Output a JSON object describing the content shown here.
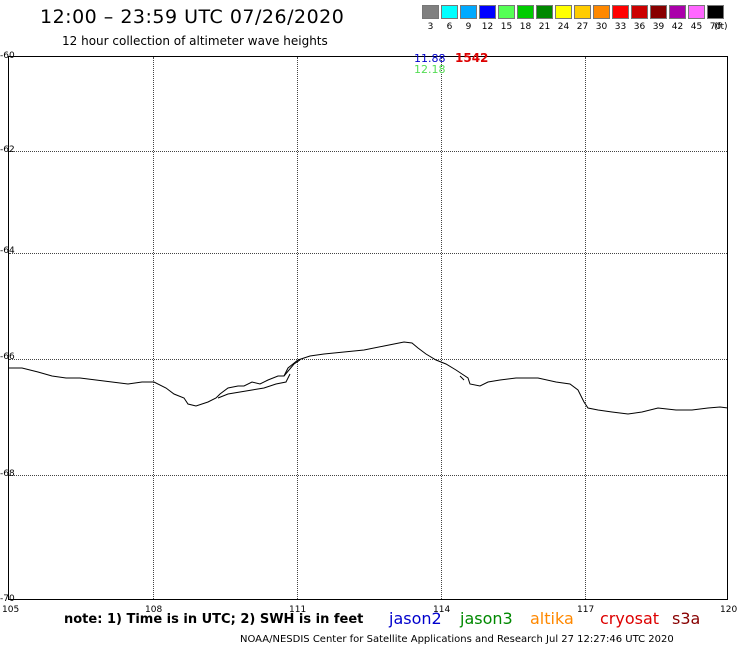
{
  "header": {
    "title": "12:00 – 23:59 UTC 07/26/2020",
    "subtitle": "12 hour collection of altimeter wave heights"
  },
  "legend": {
    "unit": "(ft)",
    "swatches": [
      {
        "label": "3",
        "color": "#808080"
      },
      {
        "label": "6",
        "color": "#00ffff"
      },
      {
        "label": "9",
        "color": "#00aaff"
      },
      {
        "label": "12",
        "color": "#0000ff"
      },
      {
        "label": "15",
        "color": "#55ff55"
      },
      {
        "label": "18",
        "color": "#00cc00"
      },
      {
        "label": "21",
        "color": "#008800"
      },
      {
        "label": "24",
        "color": "#ffff00"
      },
      {
        "label": "27",
        "color": "#ffcc00"
      },
      {
        "label": "30",
        "color": "#ff8800"
      },
      {
        "label": "33",
        "color": "#ff0000"
      },
      {
        "label": "36",
        "color": "#cc0000"
      },
      {
        "label": "39",
        "color": "#880000"
      },
      {
        "label": "42",
        "color": "#aa00aa"
      },
      {
        "label": "45",
        "color": "#ff66ff"
      },
      {
        "label": "70",
        "color": "#000000"
      }
    ]
  },
  "map": {
    "lat_labels": [
      "-60",
      "-62",
      "-64",
      "-66",
      "-68",
      "-70"
    ],
    "lon_labels": [
      "105",
      "108",
      "111",
      "114",
      "117",
      "120"
    ],
    "observations": [
      {
        "text": "11.88",
        "color": "#0000cc"
      },
      {
        "text": "12.18",
        "color": "#55dd55"
      },
      {
        "text": "1542",
        "color": "#dd0000"
      }
    ]
  },
  "footer": {
    "note": "note: 1) Time is in UTC; 2) SWH is in feet",
    "satellites": [
      {
        "name": "jason2",
        "color": "#0000cc"
      },
      {
        "name": "jason3",
        "color": "#008800"
      },
      {
        "name": "altika",
        "color": "#ff8800"
      },
      {
        "name": "cryosat",
        "color": "#dd0000"
      },
      {
        "name": "s3a",
        "color": "#880000"
      }
    ],
    "credit": "NOAA/NESDIS Center for Satellite Applications and Research    Jul 27 12:27:46 UTC 2020"
  }
}
